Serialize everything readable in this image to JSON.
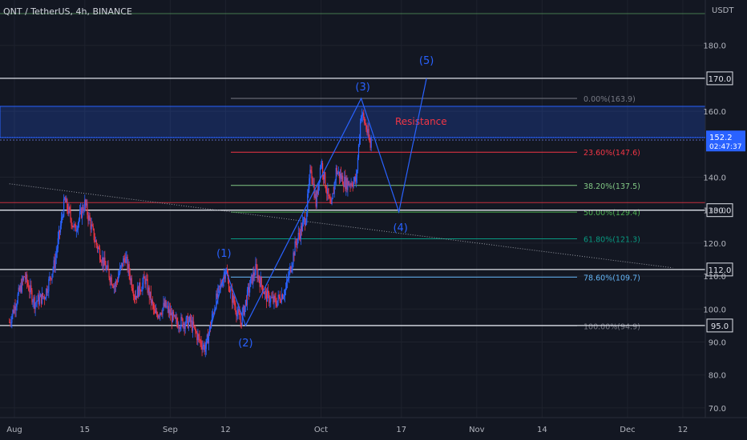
{
  "header": {
    "symbol_label": "QNT / TetherUS, 4h, BINANCE",
    "currency": "USDT"
  },
  "chart_data": {
    "type": "candlestick",
    "symbol": "QNT / TetherUS",
    "interval": "4h",
    "exchange": "BINANCE",
    "ylim": [
      66,
      195
    ],
    "y_ticks": [
      "70.0",
      "80.0",
      "90.0",
      "100.0",
      "110.0",
      "120.0",
      "130.0",
      "140.0",
      "160.0",
      "180.0"
    ],
    "x_ticks": [
      {
        "label": "Aug",
        "day": 0
      },
      {
        "label": "15",
        "day": 14
      },
      {
        "label": "Sep",
        "day": 31
      },
      {
        "label": "12",
        "day": 42
      },
      {
        "label": "Oct",
        "day": 61
      },
      {
        "label": "17",
        "day": 77
      },
      {
        "label": "Nov",
        "day": 92
      },
      {
        "label": "14",
        "day": 105
      },
      {
        "label": "Dec",
        "day": 122
      },
      {
        "label": "12",
        "day": 133
      }
    ],
    "price_path": [
      [
        -1,
        96
      ],
      [
        2,
        110
      ],
      [
        4,
        102
      ],
      [
        6,
        104
      ],
      [
        8,
        114
      ],
      [
        10,
        133
      ],
      [
        12,
        124
      ],
      [
        14,
        132
      ],
      [
        16,
        121
      ],
      [
        18,
        113
      ],
      [
        20,
        107
      ],
      [
        22,
        116
      ],
      [
        24,
        104
      ],
      [
        26,
        109
      ],
      [
        28,
        98
      ],
      [
        30,
        101
      ],
      [
        32,
        96
      ],
      [
        35,
        96
      ],
      [
        37,
        90
      ],
      [
        38,
        88
      ],
      [
        40,
        102
      ],
      [
        42,
        112
      ],
      [
        43,
        105
      ],
      [
        45,
        96
      ],
      [
        47,
        108
      ],
      [
        48,
        112
      ],
      [
        50,
        104
      ],
      [
        52,
        102
      ],
      [
        54,
        106
      ],
      [
        56,
        120
      ],
      [
        58,
        128
      ],
      [
        59,
        143
      ],
      [
        60,
        132
      ],
      [
        61,
        145
      ],
      [
        62,
        137
      ],
      [
        63,
        130
      ],
      [
        64,
        142
      ],
      [
        66,
        138
      ],
      [
        68,
        139
      ],
      [
        69,
        160
      ],
      [
        70,
        155
      ],
      [
        71,
        148
      ]
    ],
    "current_price": "152.2",
    "countdown": "02:47:37",
    "horizontal_levels": [
      "170.0",
      "130.0",
      "112.0",
      "95.0"
    ],
    "resistance": {
      "label": "Resistance",
      "top": 161.5,
      "bottom": 152
    },
    "fibonacci": [
      {
        "label": "0.00%(163.9)",
        "value": 163.9,
        "color": "#787b86"
      },
      {
        "label": "23.60%(147.6)",
        "value": 147.6,
        "color": "#f23645"
      },
      {
        "label": "38.20%(137.5)",
        "value": 137.5,
        "color": "#81c784"
      },
      {
        "label": "50.00%(129.4)",
        "value": 129.4,
        "color": "#4caf50"
      },
      {
        "label": "61.80%(121.3)",
        "value": 121.3,
        "color": "#089981"
      },
      {
        "label": "78.60%(109.7)",
        "value": 109.7,
        "color": "#64b5f6"
      },
      {
        "label": "100.00%(94.9)",
        "value": 94.9,
        "color": "#787b86"
      }
    ],
    "waves": [
      {
        "label": "(1)",
        "day": 42,
        "price": 112
      },
      {
        "label": "(2)",
        "day": 46,
        "price": 95
      },
      {
        "label": "(3)",
        "day": 69,
        "price": 163.9
      },
      {
        "label": "(4)",
        "day": 76.5,
        "price": 129.5
      },
      {
        "label": "(5)",
        "day": 82,
        "price": 170
      }
    ],
    "wave_path": [
      [
        38,
        88
      ],
      [
        42,
        112
      ],
      [
        46,
        95
      ],
      [
        69,
        163.9
      ],
      [
        76.5,
        129.5
      ],
      [
        82,
        170
      ]
    ],
    "trendline": [
      [
        -1,
        138
      ],
      [
        131,
        112.5
      ]
    ]
  }
}
